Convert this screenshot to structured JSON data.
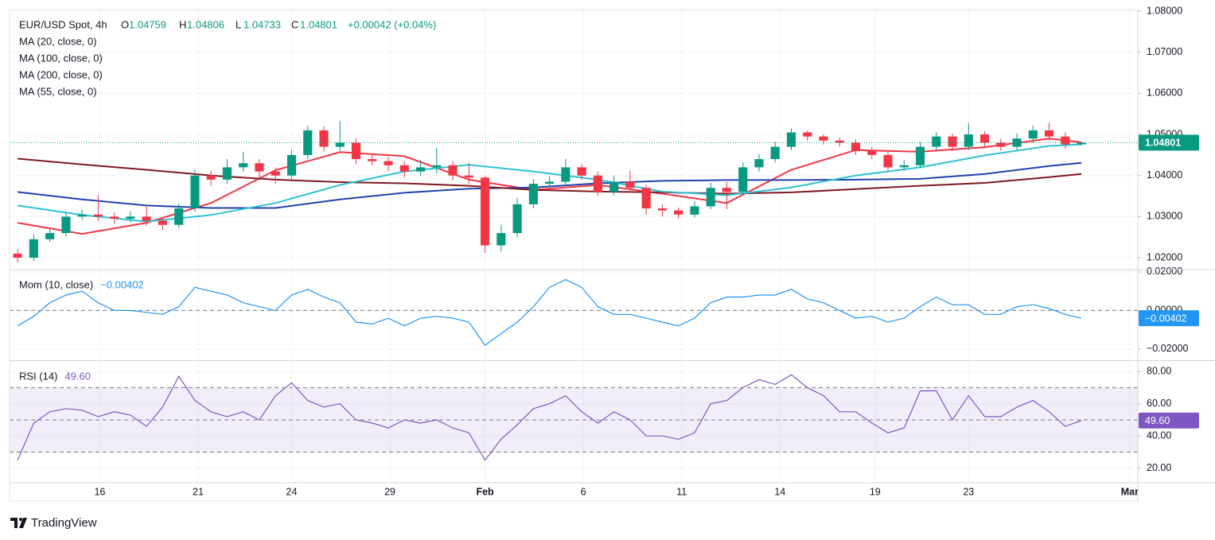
{
  "chart_data": [
    {
      "type": "candlestick",
      "title": "EUR/USD Spot, 4h",
      "ohlc_letters": [
        "O",
        "H",
        "L",
        "C"
      ],
      "change": "+0.00042 (+0.04%)",
      "up_color": "#089981",
      "down_color": "#f23645",
      "grid": true,
      "x": [
        0,
        1,
        2,
        3,
        4,
        5,
        6,
        7,
        8,
        9,
        10,
        11,
        12,
        13,
        14,
        15,
        16,
        17,
        18,
        19,
        20,
        21,
        22,
        23,
        24,
        25,
        26,
        27,
        28,
        29,
        30,
        31,
        32,
        33,
        34,
        35,
        36,
        37,
        38,
        39,
        40,
        41,
        42,
        43,
        44,
        45,
        46,
        47,
        48,
        49,
        50,
        51,
        52,
        53,
        54,
        55,
        56,
        57,
        58,
        59,
        60,
        61,
        62,
        63,
        64,
        65,
        66
      ],
      "open": [
        1.021,
        1.02,
        1.0245,
        1.026,
        1.03,
        1.0305,
        1.03,
        1.0295,
        1.03,
        1.029,
        1.028,
        1.032,
        1.04,
        1.039,
        1.042,
        1.043,
        1.041,
        1.04,
        1.045,
        1.051,
        1.047,
        1.048,
        1.044,
        1.0435,
        1.0425,
        1.041,
        1.042,
        1.0425,
        1.04,
        1.0395,
        1.023,
        1.026,
        1.033,
        1.038,
        1.0385,
        1.042,
        1.04,
        1.036,
        1.0385,
        1.037,
        1.032,
        1.0315,
        1.0305,
        1.0325,
        1.037,
        1.036,
        1.042,
        1.044,
        1.047,
        1.0505,
        1.0495,
        1.0485,
        1.048,
        1.046,
        1.045,
        1.042,
        1.0425,
        1.047,
        1.0495,
        1.047,
        1.05,
        1.048,
        1.047,
        1.049,
        1.051,
        1.0495,
        1.04759
      ],
      "high": [
        1.0222,
        1.0257,
        1.0272,
        1.031,
        1.0317,
        1.0352,
        1.031,
        1.0313,
        1.0328,
        1.0298,
        1.0332,
        1.0415,
        1.0412,
        1.044,
        1.0458,
        1.044,
        1.042,
        1.0462,
        1.0522,
        1.052,
        1.0533,
        1.049,
        1.0452,
        1.0445,
        1.0435,
        1.0438,
        1.0468,
        1.0435,
        1.043,
        1.04,
        1.028,
        1.0345,
        1.0392,
        1.0398,
        1.044,
        1.0428,
        1.041,
        1.04,
        1.0412,
        1.0378,
        1.033,
        1.0322,
        1.0338,
        1.0382,
        1.0385,
        1.0432,
        1.0452,
        1.0482,
        1.0515,
        1.051,
        1.05,
        1.0492,
        1.0488,
        1.047,
        1.0458,
        1.0438,
        1.0482,
        1.0505,
        1.0502,
        1.0528,
        1.0508,
        1.049,
        1.0502,
        1.0522,
        1.0528,
        1.0505,
        1.04806
      ],
      "low": [
        1.0188,
        1.0192,
        1.0238,
        1.0252,
        1.0292,
        1.029,
        1.0283,
        1.0285,
        1.0278,
        1.0268,
        1.0272,
        1.0312,
        1.0375,
        1.038,
        1.041,
        1.0395,
        1.038,
        1.0392,
        1.044,
        1.0458,
        1.046,
        1.0428,
        1.0425,
        1.041,
        1.0395,
        1.04,
        1.0405,
        1.0388,
        1.038,
        1.0212,
        1.0215,
        1.025,
        1.032,
        1.037,
        1.0375,
        1.039,
        1.035,
        1.0352,
        1.0358,
        1.0305,
        1.03,
        1.0295,
        1.0298,
        1.0318,
        1.0318,
        1.0352,
        1.041,
        1.0432,
        1.0462,
        1.0485,
        1.0475,
        1.047,
        1.045,
        1.044,
        1.041,
        1.0412,
        1.0418,
        1.0462,
        1.046,
        1.0462,
        1.047,
        1.046,
        1.0462,
        1.048,
        1.0485,
        1.0465,
        1.04733
      ],
      "close": [
        1.02,
        1.0245,
        1.026,
        1.03,
        1.0305,
        1.03,
        1.0295,
        1.03,
        1.029,
        1.028,
        1.032,
        1.04,
        1.039,
        1.042,
        1.043,
        1.041,
        1.04,
        1.045,
        1.051,
        1.047,
        1.048,
        1.044,
        1.0435,
        1.0425,
        1.041,
        1.042,
        1.0425,
        1.04,
        1.0395,
        1.023,
        1.026,
        1.033,
        1.038,
        1.0385,
        1.042,
        1.04,
        1.036,
        1.0385,
        1.037,
        1.032,
        1.0315,
        1.0305,
        1.0325,
        1.037,
        1.036,
        1.042,
        1.044,
        1.047,
        1.0505,
        1.0495,
        1.0485,
        1.048,
        1.046,
        1.045,
        1.042,
        1.0425,
        1.047,
        1.0495,
        1.047,
        1.05,
        1.048,
        1.047,
        1.049,
        1.051,
        1.0495,
        1.04759,
        1.04801
      ],
      "overlays": [
        {
          "name": "MA (20, close, 0)",
          "color": "#f23645",
          "x": [
            0,
            4,
            8,
            12,
            16,
            20,
            24,
            28,
            32,
            36,
            40,
            44,
            48,
            52,
            56,
            60,
            64,
            66
          ],
          "values": [
            1.0285,
            1.0258,
            1.0285,
            1.0333,
            1.0413,
            1.0457,
            1.0447,
            1.039,
            1.0365,
            1.0377,
            1.0356,
            1.0333,
            1.0414,
            1.0462,
            1.0458,
            1.0469,
            1.049,
            1.0481
          ]
        },
        {
          "name": "MA (100, close, 0)",
          "color": "#2142b0",
          "x": [
            0,
            4,
            8,
            12,
            16,
            20,
            24,
            28,
            32,
            36,
            40,
            44,
            48,
            52,
            56,
            60,
            64,
            66
          ],
          "values": [
            1.036,
            1.0342,
            1.0327,
            1.0321,
            1.0321,
            1.0342,
            1.0358,
            1.0368,
            1.0371,
            1.0381,
            1.0387,
            1.0389,
            1.0389,
            1.039,
            1.0392,
            1.0404,
            1.0423,
            1.0431
          ]
        },
        {
          "name": "MA (200, close, 0)",
          "color": "#801922",
          "x": [
            0,
            4,
            8,
            12,
            16,
            20,
            24,
            28,
            32,
            36,
            40,
            44,
            48,
            52,
            56,
            60,
            64,
            66
          ],
          "values": [
            1.0441,
            1.0427,
            1.0414,
            1.04,
            1.039,
            1.0384,
            1.0381,
            1.0375,
            1.0365,
            1.0361,
            1.0359,
            1.0356,
            1.0359,
            1.0367,
            1.0375,
            1.0382,
            1.0396,
            1.0404
          ]
        },
        {
          "name": "MA (55, close, 0)",
          "color": "#2fc2d3",
          "x": [
            0,
            4,
            8,
            12,
            16,
            20,
            24,
            28,
            32,
            36,
            40,
            44,
            48,
            52,
            56,
            60,
            64,
            66
          ],
          "values": [
            1.0327,
            1.0304,
            1.0288,
            1.0304,
            1.0333,
            1.0377,
            1.041,
            1.0426,
            1.041,
            1.039,
            1.0361,
            1.0352,
            1.0371,
            1.04,
            1.042,
            1.0449,
            1.0472,
            1.0476
          ]
        }
      ],
      "ylim": [
        1.0173,
        1.0804
      ],
      "yticks": [
        {
          "value": 1.02,
          "label": "1.02000"
        },
        {
          "value": 1.03,
          "label": "1.03000"
        },
        {
          "value": 1.04,
          "label": "1.04000"
        },
        {
          "value": 1.05,
          "label": "1.05000"
        },
        {
          "value": 1.06,
          "label": "1.06000"
        },
        {
          "value": 1.07,
          "label": "1.07000"
        },
        {
          "value": 1.08,
          "label": "1.08000"
        }
      ],
      "xlim": [
        -0.5,
        69.5
      ],
      "xticks": [
        {
          "value": 5.1,
          "label": "16"
        },
        {
          "value": 11.2,
          "label": "21"
        },
        {
          "value": 17.0,
          "label": "24"
        },
        {
          "value": 23.1,
          "label": "29"
        },
        {
          "value": 29.0,
          "label": "Feb"
        },
        {
          "value": 35.1,
          "label": "6"
        },
        {
          "value": 41.2,
          "label": "11"
        },
        {
          "value": 47.3,
          "label": "14"
        },
        {
          "value": 53.2,
          "label": "19"
        },
        {
          "value": 59.0,
          "label": "23"
        },
        {
          "value": 69.0,
          "label": "Mar"
        }
      ]
    },
    {
      "type": "line",
      "name": "Mom (10, close)",
      "color": "#2196f3",
      "last_value_label": "−0.00402",
      "values": [
        -0.008,
        -0.003,
        0.004,
        0.008,
        0.01,
        0.004,
        0.0,
        0.0,
        -0.001,
        -0.002,
        0.002,
        0.012,
        0.01,
        0.008,
        0.004,
        0.002,
        0.0,
        0.008,
        0.011,
        0.007,
        0.004,
        -0.006,
        -0.007,
        -0.004,
        -0.008,
        -0.004,
        -0.003,
        -0.004,
        -0.006,
        -0.018,
        -0.012,
        -0.006,
        0.002,
        0.012,
        0.016,
        0.012,
        0.002,
        -0.002,
        -0.002,
        -0.004,
        -0.006,
        -0.008,
        -0.004,
        0.004,
        0.007,
        0.007,
        0.008,
        0.008,
        0.011,
        0.006,
        0.004,
        0.0,
        -0.004,
        -0.003,
        -0.006,
        -0.004,
        0.002,
        0.007,
        0.003,
        0.003,
        -0.002,
        -0.002,
        0.002,
        0.003,
        0.001,
        -0.002,
        -0.00402
      ],
      "ylim": [
        -0.0254,
        0.0208
      ],
      "yticks": [
        {
          "value": -0.02,
          "label": "−0.02000"
        },
        {
          "value": 0,
          "label": "0.00000"
        },
        {
          "value": 0.02,
          "label": "0.02000"
        }
      ],
      "levels": [
        0
      ]
    },
    {
      "type": "line",
      "name": "RSI (14)",
      "color": "#7e57c2",
      "last_value_label": "49.60",
      "band": true,
      "values": [
        25,
        48,
        55,
        57,
        56,
        52,
        55,
        53,
        46,
        58,
        77,
        62,
        55,
        52,
        55,
        50,
        65,
        73,
        62,
        58,
        60,
        50,
        48,
        45,
        50,
        48,
        50,
        45,
        42,
        25,
        38,
        47,
        57,
        60,
        65,
        55,
        48,
        55,
        50,
        40,
        40,
        38,
        42,
        60,
        62,
        70,
        75,
        72,
        78,
        70,
        65,
        55,
        55,
        48,
        42,
        45,
        68,
        68,
        50,
        65,
        52,
        52,
        58,
        62,
        55,
        46,
        49.6
      ],
      "ylim": [
        12,
        86
      ],
      "yticks": [
        {
          "value": 20,
          "label": "20.00"
        },
        {
          "value": 40,
          "label": "40.00"
        },
        {
          "value": 60,
          "label": "60.00"
        },
        {
          "value": 80,
          "label": "80.00"
        }
      ],
      "levels": [
        30,
        50,
        70
      ]
    }
  ],
  "branding": "TradingView"
}
